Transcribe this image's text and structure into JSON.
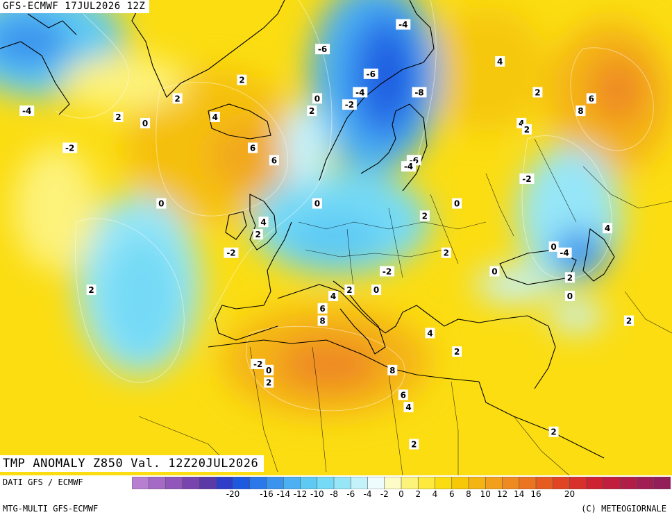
{
  "header": {
    "run_label": "GFS-ECMWF 17JUL2026 12Z"
  },
  "title": {
    "text": "TMP ANOMALY Z850 Val. 12Z20JUL2026"
  },
  "footer": {
    "source_top": "DATI GFS / ECMWF",
    "source_bottom": "MTG-MULTI GFS-ECMWF",
    "copyright": "(C) METEOGIORNALE"
  },
  "legend": {
    "tick_labels": [
      "-20",
      "-16",
      "-14",
      "-12",
      "-10",
      "-8",
      "-6",
      "-4",
      "-2",
      "0",
      "2",
      "4",
      "6",
      "8",
      "10",
      "12",
      "14",
      "16",
      "20"
    ],
    "tick_values": [
      -20,
      -16,
      -14,
      -12,
      -10,
      -8,
      -6,
      -4,
      -2,
      0,
      2,
      4,
      6,
      8,
      10,
      12,
      14,
      16,
      20
    ],
    "colors": [
      "#b87fd0",
      "#a46ac6",
      "#9056ba",
      "#7a44ae",
      "#5a3aa6",
      "#2e3ec8",
      "#1e5ae0",
      "#2a78ea",
      "#3a94ee",
      "#4cb0f2",
      "#5ecaf4",
      "#74daf6",
      "#96e6f8",
      "#c4f2fb",
      "#eefcfd",
      "#fdfbc6",
      "#fdf27a",
      "#fdea3c",
      "#fbdc10",
      "#f6c808",
      "#f4b412",
      "#f2a01c",
      "#ef8a20",
      "#eb7420",
      "#e65c20",
      "#e04422",
      "#d8302a",
      "#cc2232",
      "#c01e3c",
      "#b01e48",
      "#a01e52",
      "#921e5a"
    ]
  },
  "map_labels": [
    {
      "text": "-4",
      "lon": -50,
      "lat": 64
    },
    {
      "text": "-2",
      "lon": -42,
      "lat": 58
    },
    {
      "text": "2",
      "lon": -33,
      "lat": 63
    },
    {
      "text": "0",
      "lon": -28,
      "lat": 62
    },
    {
      "text": "2",
      "lon": -22,
      "lat": 66
    },
    {
      "text": "2",
      "lon": -10,
      "lat": 69
    },
    {
      "text": "4",
      "lon": -15,
      "lat": 63
    },
    {
      "text": "6",
      "lon": -8,
      "lat": 58
    },
    {
      "text": "6",
      "lon": -4,
      "lat": 56
    },
    {
      "text": "-6",
      "lon": 5,
      "lat": 74
    },
    {
      "text": "-4",
      "lon": 20,
      "lat": 78
    },
    {
      "text": "-6",
      "lon": 14,
      "lat": 70
    },
    {
      "text": "-4",
      "lon": 12,
      "lat": 67
    },
    {
      "text": "-2",
      "lon": 10,
      "lat": 65
    },
    {
      "text": "0",
      "lon": 4,
      "lat": 66
    },
    {
      "text": "2",
      "lon": 3,
      "lat": 64
    },
    {
      "text": "-8",
      "lon": 23,
      "lat": 67
    },
    {
      "text": "-6",
      "lon": 22,
      "lat": 56
    },
    {
      "text": "-4",
      "lon": 21,
      "lat": 55
    },
    {
      "text": "4",
      "lon": 38,
      "lat": 72
    },
    {
      "text": "2",
      "lon": 45,
      "lat": 67
    },
    {
      "text": "8",
      "lon": 53,
      "lat": 64
    },
    {
      "text": "6",
      "lon": 55,
      "lat": 66
    },
    {
      "text": "4",
      "lon": 42,
      "lat": 62
    },
    {
      "text": "2",
      "lon": 43,
      "lat": 61
    },
    {
      "text": "-2",
      "lon": 43,
      "lat": 53
    },
    {
      "text": "0",
      "lon": 30,
      "lat": 49
    },
    {
      "text": "0",
      "lon": 4,
      "lat": 49
    },
    {
      "text": "0",
      "lon": -25,
      "lat": 49
    },
    {
      "text": "4",
      "lon": -6,
      "lat": 46
    },
    {
      "text": "2",
      "lon": -7,
      "lat": 44
    },
    {
      "text": "2",
      "lon": 24,
      "lat": 47
    },
    {
      "text": "4",
      "lon": 58,
      "lat": 45
    },
    {
      "text": "0",
      "lon": 48,
      "lat": 42
    },
    {
      "text": "-4",
      "lon": 50,
      "lat": 41
    },
    {
      "text": "2",
      "lon": 51,
      "lat": 37
    },
    {
      "text": "0",
      "lon": 51,
      "lat": 34
    },
    {
      "text": "2",
      "lon": 28,
      "lat": 41
    },
    {
      "text": "0",
      "lon": 37,
      "lat": 38
    },
    {
      "text": "-2",
      "lon": -12,
      "lat": 41
    },
    {
      "text": "-2",
      "lon": 17,
      "lat": 38
    },
    {
      "text": "0",
      "lon": 15,
      "lat": 35
    },
    {
      "text": "2",
      "lon": 10,
      "lat": 35
    },
    {
      "text": "4",
      "lon": 7,
      "lat": 34
    },
    {
      "text": "6",
      "lon": 5,
      "lat": 32
    },
    {
      "text": "8",
      "lon": 5,
      "lat": 30
    },
    {
      "text": "2",
      "lon": -38,
      "lat": 35
    },
    {
      "text": "-2",
      "lon": -7,
      "lat": 23
    },
    {
      "text": "0",
      "lon": -5,
      "lat": 22
    },
    {
      "text": "2",
      "lon": -5,
      "lat": 20
    },
    {
      "text": "4",
      "lon": 25,
      "lat": 28
    },
    {
      "text": "2",
      "lon": 30,
      "lat": 25
    },
    {
      "text": "8",
      "lon": 18,
      "lat": 22
    },
    {
      "text": "6",
      "lon": 20,
      "lat": 18
    },
    {
      "text": "4",
      "lon": 21,
      "lat": 16
    },
    {
      "text": "2",
      "lon": 22,
      "lat": 10
    },
    {
      "text": "2",
      "lon": 48,
      "lat": 12
    },
    {
      "text": "2",
      "lon": 62,
      "lat": 30
    }
  ]
}
